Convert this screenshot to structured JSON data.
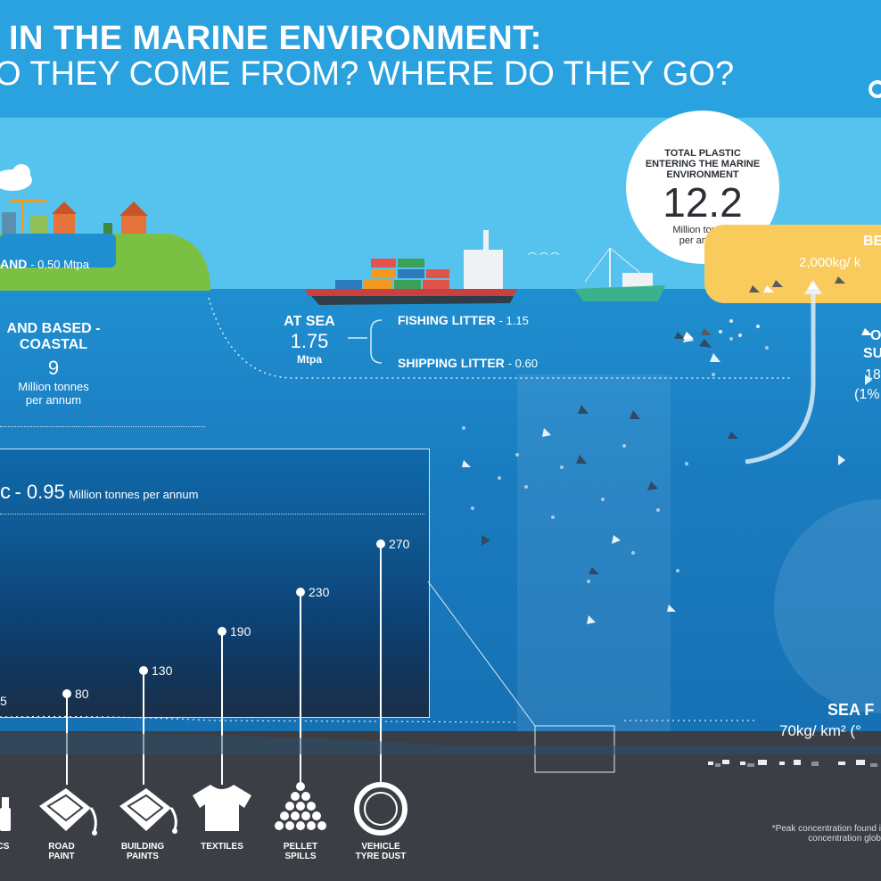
{
  "header": {
    "line1": "IN THE MARINE ENVIRONMENT:",
    "line2": "O THEY COME FROM? WHERE DO THEY GO?"
  },
  "land": {
    "inland_label": "AND",
    "inland_value": "- 0.50  Mtpa",
    "coastal_title_1": "AND BASED -",
    "coastal_title_2": "COASTAL",
    "coastal_value": "9",
    "coastal_unit_1": "Million tonnes",
    "coastal_unit_2": "per annum"
  },
  "at_sea": {
    "title": "AT SEA",
    "value": "1.75",
    "unit": "Mtpa",
    "fishing_label": "FISHING LITTER",
    "fishing_value": "- 1.15",
    "shipping_label": "SHIPPING LITTER",
    "shipping_value": "- 0.60"
  },
  "total": {
    "line1": "TOTAL PLASTIC",
    "line2": "ENTERING THE MARINE",
    "line3": "ENVIRONMENT",
    "value": "12.2",
    "unit1": "Million tonnes",
    "unit2": "per annum"
  },
  "beach": {
    "title": "BE",
    "value": "2,000kg/ k"
  },
  "surface": {
    "t1": "O",
    "t2": "SU",
    "t3": "18",
    "t4": "(1%"
  },
  "microplastic": {
    "title": "c",
    "value": "- 0.95",
    "unit": "Million tonnes per annum",
    "points": [
      {
        "value": "5"
      },
      {
        "value": "80"
      },
      {
        "value": "130"
      },
      {
        "value": "190"
      },
      {
        "value": "230"
      },
      {
        "value": "270"
      }
    ]
  },
  "sources": [
    {
      "label1": "TICS",
      "label2": "",
      "icon": "cosmetics-icon"
    },
    {
      "label1": "ROAD",
      "label2": "PAINT",
      "icon": "road-paint-icon"
    },
    {
      "label1": "BUILDING",
      "label2": "PAINTS",
      "icon": "building-paint-icon"
    },
    {
      "label1": "TEXTILES",
      "label2": "",
      "icon": "tshirt-icon"
    },
    {
      "label1": "PELLET",
      "label2": "SPILLS",
      "icon": "pellet-icon"
    },
    {
      "label1": "VEHICLE",
      "label2": "TYRE DUST",
      "icon": "tyre-icon"
    }
  ],
  "sea_floor": {
    "title": "SEA F",
    "value": "70kg/ km² (°"
  },
  "footnote": {
    "line1": "*Peak concentration found i",
    "line2": "concentration glob"
  },
  "colors": {
    "sky": "#55c3ee",
    "sea": "#1a7cc0",
    "floor": "#3b3e44",
    "beach": "#f9cb5c",
    "grass": "#7ac143"
  }
}
